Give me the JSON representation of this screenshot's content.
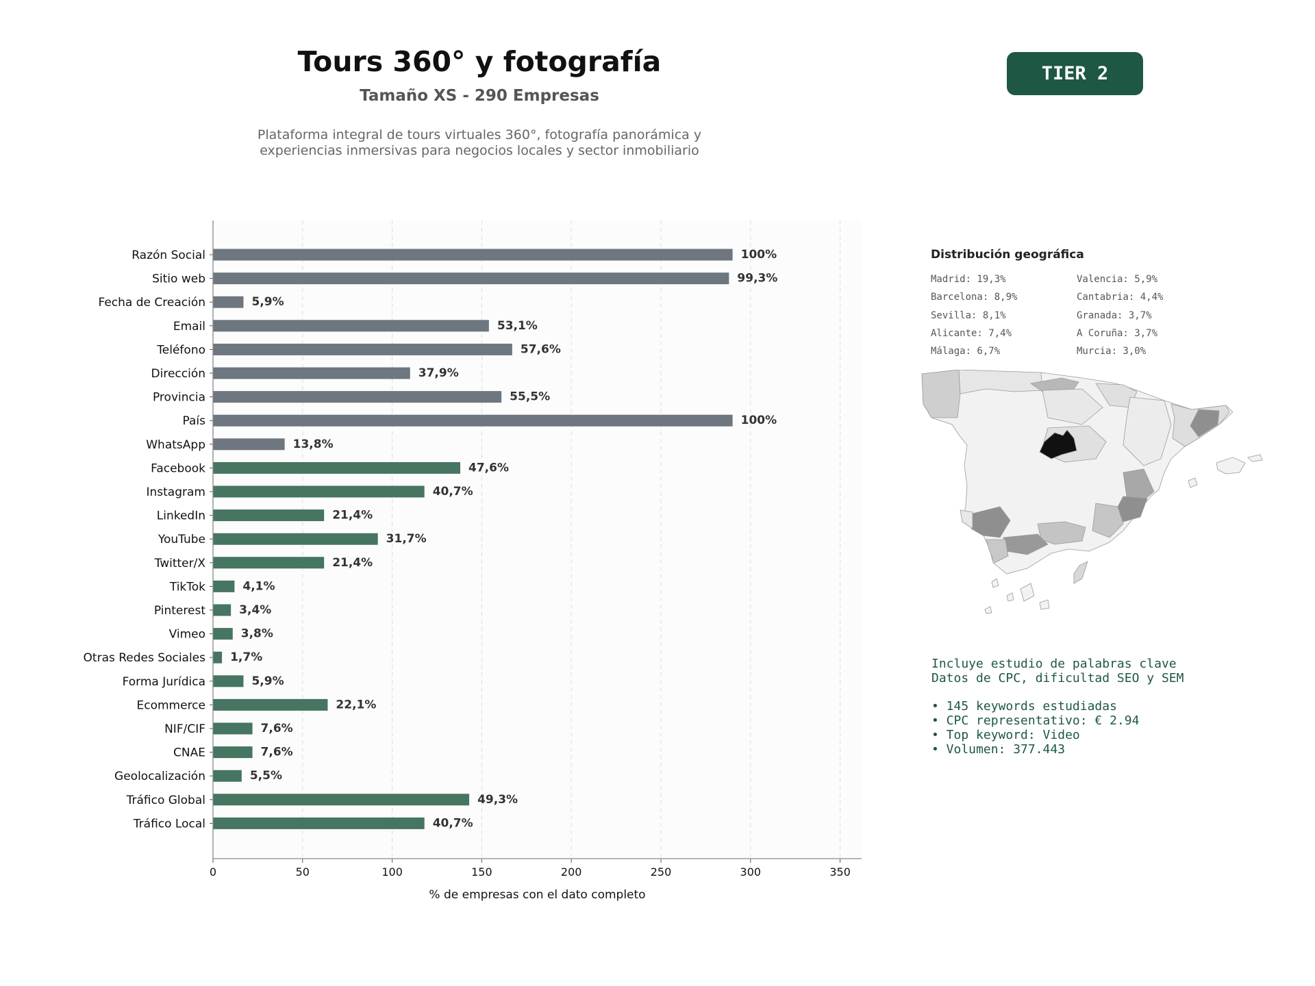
{
  "header": {
    "title": "Tours 360° y fotografía",
    "subtitle": "Tamaño XS - 290 Empresas",
    "description_line1": "Plataforma integral de tours virtuales 360°, fotografía panorámica y",
    "description_line2": "experiencias inmersivas para negocios locales y sector inmobiliario",
    "tier_badge": "TIER 2"
  },
  "colors": {
    "gray_bar": "#6e7780",
    "green_bar": "#467561",
    "accent": "#1e5744"
  },
  "chart_data": {
    "type": "bar",
    "orientation": "horizontal",
    "xlabel": "% de empresas con el dato completo",
    "xlim": [
      0,
      362
    ],
    "xticks": [
      0,
      50,
      100,
      150,
      200,
      250,
      300,
      350
    ],
    "grid": "vertical-dashed",
    "bars": [
      {
        "category": "Razón Social",
        "value": 290,
        "label": "100%",
        "group": "gray"
      },
      {
        "category": "Sitio web",
        "value": 288,
        "label": "99,3%",
        "group": "gray"
      },
      {
        "category": "Fecha de Creación",
        "value": 17,
        "label": "5,9%",
        "group": "gray"
      },
      {
        "category": "Email",
        "value": 154,
        "label": "53,1%",
        "group": "gray"
      },
      {
        "category": "Teléfono",
        "value": 167,
        "label": "57,6%",
        "group": "gray"
      },
      {
        "category": "Dirección",
        "value": 110,
        "label": "37,9%",
        "group": "gray"
      },
      {
        "category": "Provincia",
        "value": 161,
        "label": "55,5%",
        "group": "gray"
      },
      {
        "category": "País",
        "value": 290,
        "label": "100%",
        "group": "gray"
      },
      {
        "category": "WhatsApp",
        "value": 40,
        "label": "13,8%",
        "group": "gray"
      },
      {
        "category": "Facebook",
        "value": 138,
        "label": "47,6%",
        "group": "green"
      },
      {
        "category": "Instagram",
        "value": 118,
        "label": "40,7%",
        "group": "green"
      },
      {
        "category": "LinkedIn",
        "value": 62,
        "label": "21,4%",
        "group": "green"
      },
      {
        "category": "YouTube",
        "value": 92,
        "label": "31,7%",
        "group": "green"
      },
      {
        "category": "Twitter/X",
        "value": 62,
        "label": "21,4%",
        "group": "green"
      },
      {
        "category": "TikTok",
        "value": 12,
        "label": "4,1%",
        "group": "green"
      },
      {
        "category": "Pinterest",
        "value": 10,
        "label": "3,4%",
        "group": "green"
      },
      {
        "category": "Vimeo",
        "value": 11,
        "label": "3,8%",
        "group": "green"
      },
      {
        "category": "Otras Redes Sociales",
        "value": 5,
        "label": "1,7%",
        "group": "green"
      },
      {
        "category": "Forma Jurídica",
        "value": 17,
        "label": "5,9%",
        "group": "green"
      },
      {
        "category": "Ecommerce",
        "value": 64,
        "label": "22,1%",
        "group": "green"
      },
      {
        "category": "NIF/CIF",
        "value": 22,
        "label": "7,6%",
        "group": "green"
      },
      {
        "category": "CNAE",
        "value": 22,
        "label": "7,6%",
        "group": "green"
      },
      {
        "category": "Geolocalización",
        "value": 16,
        "label": "5,5%",
        "group": "green"
      },
      {
        "category": "Tráfico Global",
        "value": 143,
        "label": "49,3%",
        "group": "green"
      },
      {
        "category": "Tráfico Local",
        "value": 118,
        "label": "40,7%",
        "group": "green"
      }
    ]
  },
  "geo": {
    "title": "Distribución geográfica",
    "col1": [
      "Madrid: 19,3%",
      "Barcelona: 8,9%",
      "Sevilla: 8,1%",
      "Alicante: 7,4%",
      "Málaga: 6,7%"
    ],
    "col2": [
      "Valencia: 5,9%",
      "Cantabria: 4,4%",
      "Granada: 3,7%",
      "A Coruña: 3,7%",
      "Murcia: 3,0%"
    ],
    "map_fills": {
      "low": "#f2f2f2",
      "mid": "#cfcfcf",
      "high": "#8f8f8f",
      "max": "#111111"
    }
  },
  "keywords": {
    "line1": "Incluye estudio de palabras clave",
    "line2": "Datos de CPC, dificultad SEO y SEM",
    "bullets": [
      "• 145 keywords estudiadas",
      "• CPC representativo: € 2.94",
      "• Top keyword: Video",
      "• Volumen: 377.443"
    ]
  }
}
